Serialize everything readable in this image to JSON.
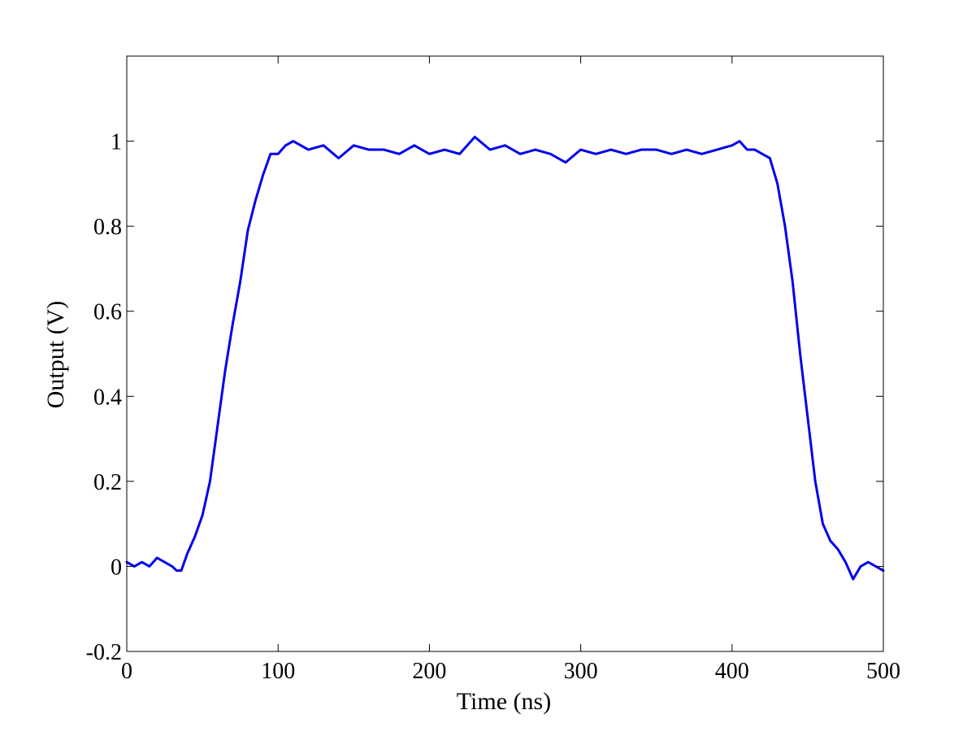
{
  "chart_data": {
    "type": "line",
    "title": "",
    "xlabel": "Time (ns)",
    "ylabel": "Output (V)",
    "xlim": [
      0,
      500
    ],
    "ylim": [
      -0.2,
      1.2
    ],
    "xticks": [
      0,
      100,
      200,
      300,
      400,
      500
    ],
    "yticks": [
      -0.2,
      0,
      0.2,
      0.4,
      0.6,
      0.8,
      1
    ],
    "xtick_labels": [
      "0",
      "100",
      "200",
      "300",
      "400",
      "500"
    ],
    "ytick_labels": [
      "-0.2",
      "0",
      "0.2",
      "0.4",
      "0.6",
      "0.8",
      "1"
    ],
    "grid": false,
    "legend": "none",
    "series": [
      {
        "color": "#0000ee",
        "x": [
          0,
          5,
          10,
          15,
          20,
          25,
          30,
          33,
          36,
          40,
          45,
          50,
          55,
          60,
          65,
          70,
          75,
          80,
          85,
          90,
          95,
          100,
          105,
          110,
          120,
          130,
          140,
          150,
          160,
          170,
          180,
          190,
          200,
          210,
          220,
          230,
          240,
          250,
          260,
          270,
          280,
          290,
          300,
          310,
          320,
          330,
          340,
          350,
          360,
          370,
          380,
          390,
          400,
          405,
          410,
          415,
          420,
          425,
          430,
          435,
          440,
          445,
          450,
          455,
          460,
          465,
          470,
          475,
          480,
          485,
          490,
          495,
          500
        ],
        "y": [
          0.01,
          0.0,
          0.01,
          0.0,
          0.02,
          0.01,
          0.0,
          -0.01,
          -0.01,
          0.03,
          0.07,
          0.12,
          0.2,
          0.33,
          0.46,
          0.57,
          0.67,
          0.79,
          0.86,
          0.92,
          0.97,
          0.97,
          0.99,
          1.0,
          0.98,
          0.99,
          0.96,
          0.99,
          0.98,
          0.98,
          0.97,
          0.99,
          0.97,
          0.98,
          0.97,
          1.01,
          0.98,
          0.99,
          0.97,
          0.98,
          0.97,
          0.95,
          0.98,
          0.97,
          0.98,
          0.97,
          0.98,
          0.98,
          0.97,
          0.98,
          0.97,
          0.98,
          0.99,
          1.0,
          0.98,
          0.98,
          0.97,
          0.96,
          0.9,
          0.8,
          0.67,
          0.5,
          0.35,
          0.2,
          0.1,
          0.06,
          0.04,
          0.01,
          -0.03,
          0.0,
          0.01,
          0.0,
          -0.01
        ]
      }
    ]
  }
}
